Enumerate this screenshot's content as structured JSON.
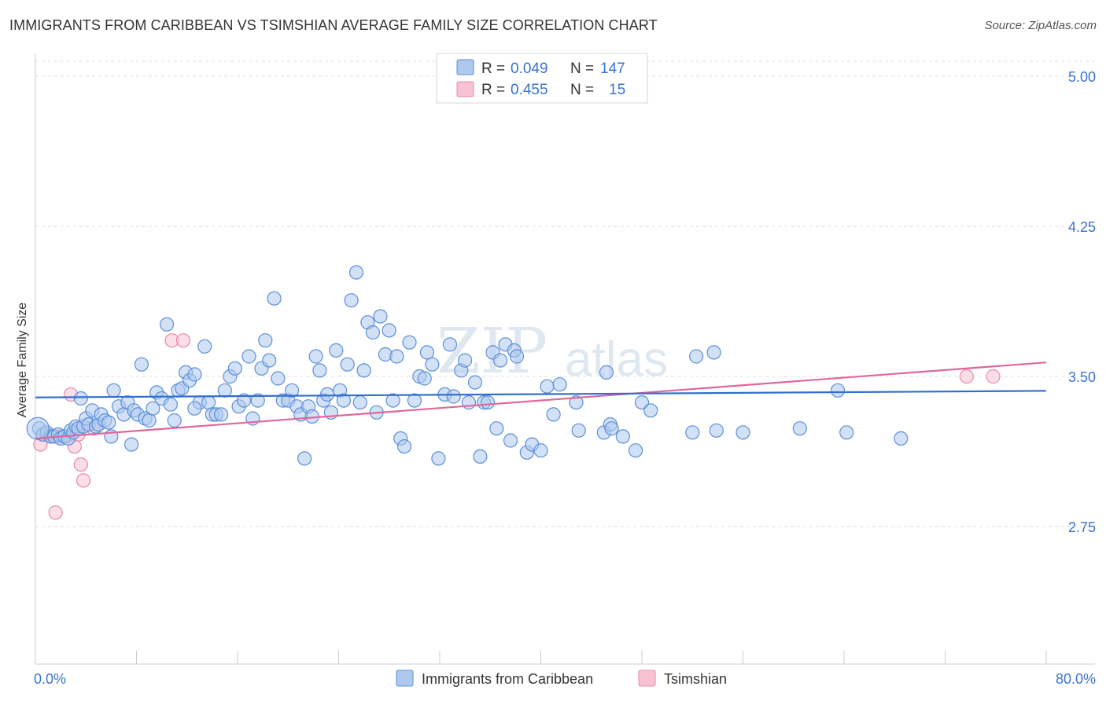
{
  "header": {
    "title": "IMMIGRANTS FROM CARIBBEAN VS TSIMSHIAN AVERAGE FAMILY SIZE CORRELATION CHART",
    "source": "Source: ZipAtlas.com"
  },
  "watermark": {
    "zip": "ZIP",
    "atlas": "atlas"
  },
  "colors": {
    "blue_fill": "#aec8ee",
    "blue_stroke": "#5b8fd9",
    "blue_line": "#2f6fcc",
    "pink_fill": "#f7c3d3",
    "pink_stroke": "#e88aa8",
    "pink_line": "#e0679a",
    "tick_text": "#3a74d0",
    "grid": "#dddddd"
  },
  "legend": {
    "rows": [
      {
        "r_label": "R = ",
        "r_value": "0.049",
        "n_label": "N = ",
        "n_value": "147"
      },
      {
        "r_label": "R = ",
        "r_value": "0.455",
        "n_label": "N = ",
        "n_value": "15"
      }
    ]
  },
  "bottom_legend": [
    "Immigrants from Caribbean",
    "Tsimshian"
  ],
  "chart_data": {
    "type": "scatter",
    "title": "IMMIGRANTS FROM CARIBBEAN VS TSIMSHIAN AVERAGE FAMILY SIZE CORRELATION CHART",
    "xlabel": "",
    "ylabel": "Average Family Size",
    "xlim": [
      0,
      80
    ],
    "ylim": [
      2.0,
      5.15
    ],
    "x_tick_labels": [
      "0.0%",
      "80.0%"
    ],
    "y_ticks": [
      5.0,
      4.25,
      3.5,
      2.75
    ],
    "y_tick_labels": [
      "5.00",
      "4.25",
      "3.50",
      "2.75"
    ],
    "grid": "horizontal dashed",
    "legend_position": "top-center",
    "series": [
      {
        "name": "Immigrants from Caribbean",
        "R": 0.049,
        "N": 147,
        "trend": {
          "x": [
            0,
            80
          ],
          "y": [
            3.395,
            3.428
          ]
        },
        "points": [
          [
            0.3,
            3.24
          ],
          [
            0.6,
            3.21
          ],
          [
            0.9,
            3.22
          ],
          [
            1.2,
            3.2
          ],
          [
            1.5,
            3.2
          ],
          [
            1.8,
            3.21
          ],
          [
            2.0,
            3.19
          ],
          [
            2.3,
            3.2
          ],
          [
            2.6,
            3.19
          ],
          [
            2.8,
            3.23
          ],
          [
            3.0,
            3.22
          ],
          [
            3.2,
            3.25
          ],
          [
            3.4,
            3.24
          ],
          [
            3.6,
            3.39
          ],
          [
            3.8,
            3.25
          ],
          [
            4.0,
            3.29
          ],
          [
            4.2,
            3.26
          ],
          [
            4.5,
            3.33
          ],
          [
            4.8,
            3.25
          ],
          [
            5.0,
            3.26
          ],
          [
            5.2,
            3.31
          ],
          [
            5.5,
            3.28
          ],
          [
            5.8,
            3.27
          ],
          [
            6.0,
            3.2
          ],
          [
            6.2,
            3.43
          ],
          [
            6.6,
            3.35
          ],
          [
            7.0,
            3.31
          ],
          [
            7.3,
            3.37
          ],
          [
            7.6,
            3.16
          ],
          [
            7.8,
            3.33
          ],
          [
            8.1,
            3.31
          ],
          [
            8.4,
            3.56
          ],
          [
            8.7,
            3.29
          ],
          [
            9.0,
            3.28
          ],
          [
            9.3,
            3.34
          ],
          [
            9.6,
            3.42
          ],
          [
            10.0,
            3.39
          ],
          [
            10.4,
            3.76
          ],
          [
            10.7,
            3.36
          ],
          [
            11.0,
            3.28
          ],
          [
            11.3,
            3.43
          ],
          [
            11.6,
            3.44
          ],
          [
            11.9,
            3.52
          ],
          [
            12.2,
            3.48
          ],
          [
            12.6,
            3.51
          ],
          [
            13.0,
            3.37
          ],
          [
            13.4,
            3.65
          ],
          [
            13.7,
            3.37
          ],
          [
            14.0,
            3.31
          ],
          [
            14.3,
            3.31
          ],
          [
            14.7,
            3.31
          ],
          [
            15.0,
            3.43
          ],
          [
            15.4,
            3.5
          ],
          [
            15.8,
            3.54
          ],
          [
            16.1,
            3.35
          ],
          [
            16.5,
            3.38
          ],
          [
            16.9,
            3.6
          ],
          [
            17.2,
            3.29
          ],
          [
            17.6,
            3.38
          ],
          [
            17.9,
            3.54
          ],
          [
            18.2,
            3.68
          ],
          [
            18.5,
            3.58
          ],
          [
            18.9,
            3.89
          ],
          [
            19.2,
            3.49
          ],
          [
            19.6,
            3.38
          ],
          [
            20.0,
            3.38
          ],
          [
            20.3,
            3.43
          ],
          [
            20.7,
            3.35
          ],
          [
            21.0,
            3.31
          ],
          [
            21.3,
            3.09
          ],
          [
            21.6,
            3.35
          ],
          [
            21.9,
            3.3
          ],
          [
            22.2,
            3.6
          ],
          [
            22.5,
            3.53
          ],
          [
            22.8,
            3.38
          ],
          [
            23.1,
            3.41
          ],
          [
            23.4,
            3.32
          ],
          [
            23.8,
            3.63
          ],
          [
            24.1,
            3.43
          ],
          [
            24.4,
            3.38
          ],
          [
            24.7,
            3.56
          ],
          [
            25.0,
            3.88
          ],
          [
            25.4,
            4.02
          ],
          [
            25.7,
            3.37
          ],
          [
            26.0,
            3.53
          ],
          [
            26.3,
            3.77
          ],
          [
            26.7,
            3.72
          ],
          [
            27.0,
            3.32
          ],
          [
            27.3,
            3.8
          ],
          [
            27.7,
            3.61
          ],
          [
            28.0,
            3.73
          ],
          [
            28.3,
            3.38
          ],
          [
            28.6,
            3.6
          ],
          [
            28.9,
            3.19
          ],
          [
            29.2,
            3.15
          ],
          [
            29.6,
            3.67
          ],
          [
            30.0,
            3.38
          ],
          [
            30.4,
            3.5
          ],
          [
            30.8,
            3.49
          ],
          [
            31.0,
            3.62
          ],
          [
            31.4,
            3.56
          ],
          [
            31.9,
            3.09
          ],
          [
            32.4,
            3.41
          ],
          [
            32.8,
            3.66
          ],
          [
            33.1,
            3.4
          ],
          [
            33.7,
            3.53
          ],
          [
            34.0,
            3.58
          ],
          [
            34.3,
            3.37
          ],
          [
            34.8,
            3.47
          ],
          [
            35.2,
            3.1
          ],
          [
            35.5,
            3.37
          ],
          [
            35.8,
            3.37
          ],
          [
            36.2,
            3.62
          ],
          [
            36.5,
            3.24
          ],
          [
            36.8,
            3.58
          ],
          [
            37.2,
            3.66
          ],
          [
            37.6,
            3.18
          ],
          [
            37.9,
            3.63
          ],
          [
            38.1,
            3.6
          ],
          [
            38.9,
            3.12
          ],
          [
            39.3,
            3.16
          ],
          [
            40.0,
            3.13
          ],
          [
            40.5,
            3.45
          ],
          [
            41.0,
            3.31
          ],
          [
            41.5,
            3.46
          ],
          [
            42.8,
            3.37
          ],
          [
            43.0,
            3.23
          ],
          [
            45.0,
            3.22
          ],
          [
            45.2,
            3.52
          ],
          [
            45.5,
            3.26
          ],
          [
            45.6,
            3.24
          ],
          [
            46.5,
            3.2
          ],
          [
            47.5,
            3.13
          ],
          [
            48.0,
            3.37
          ],
          [
            48.7,
            3.33
          ],
          [
            52.0,
            3.22
          ],
          [
            52.3,
            3.6
          ],
          [
            53.7,
            3.62
          ],
          [
            53.9,
            3.23
          ],
          [
            56.0,
            3.22
          ],
          [
            60.5,
            3.24
          ],
          [
            63.5,
            3.43
          ],
          [
            64.2,
            3.22
          ],
          [
            68.5,
            3.19
          ],
          [
            12.6,
            3.34
          ]
        ]
      },
      {
        "name": "Tsimshian",
        "R": 0.455,
        "N": 15,
        "trend": {
          "x": [
            0,
            80
          ],
          "y": [
            3.19,
            3.57
          ]
        },
        "points": [
          [
            0.4,
            3.16
          ],
          [
            0.9,
            3.21
          ],
          [
            1.3,
            3.2
          ],
          [
            1.6,
            2.82
          ],
          [
            2.0,
            3.2
          ],
          [
            2.8,
            3.41
          ],
          [
            3.1,
            3.15
          ],
          [
            3.4,
            3.21
          ],
          [
            3.6,
            3.06
          ],
          [
            3.8,
            2.98
          ],
          [
            4.6,
            3.24
          ],
          [
            10.8,
            3.68
          ],
          [
            11.7,
            3.68
          ],
          [
            73.7,
            3.5
          ],
          [
            75.8,
            3.5
          ]
        ]
      }
    ]
  }
}
